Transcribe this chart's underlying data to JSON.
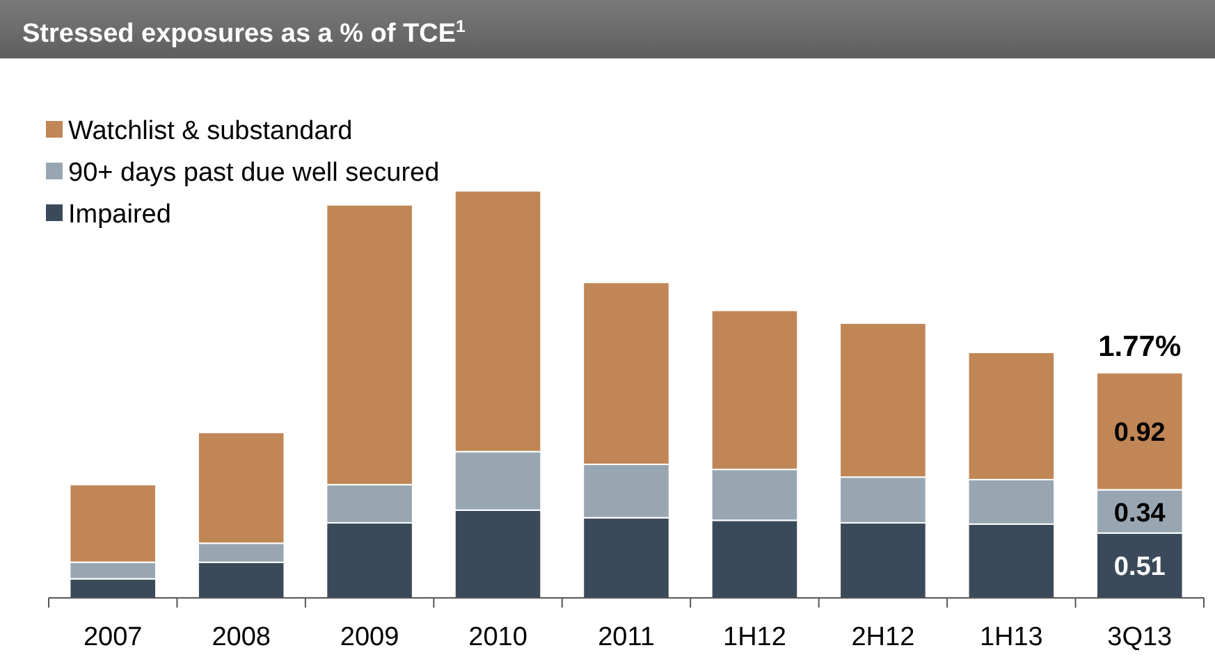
{
  "chart_data": {
    "type": "bar",
    "stacked": true,
    "title": "Stressed exposures as a % of TCE$^{1}$",
    "categories": [
      "2007",
      "2008",
      "2009",
      "2010",
      "2011",
      "1H12",
      "2H12",
      "1H13",
      "3Q13"
    ],
    "series": [
      {
        "name": "Impaired",
        "color": "#3b4a5a",
        "values": [
          0.15,
          0.28,
          0.59,
          0.69,
          0.63,
          0.61,
          0.59,
          0.58,
          0.51
        ],
        "value_labels": [
          null,
          null,
          null,
          null,
          null,
          null,
          null,
          null,
          "0.51"
        ]
      },
      {
        "name": "90+ days past due well secured",
        "color": "#98a6b2",
        "values": [
          0.13,
          0.15,
          0.3,
          0.46,
          0.42,
          0.4,
          0.36,
          0.35,
          0.34
        ],
        "value_labels": [
          null,
          null,
          null,
          null,
          null,
          null,
          null,
          null,
          "0.34"
        ]
      },
      {
        "name": "Watchlist & substandard",
        "color": "#c08656",
        "values": [
          0.61,
          0.87,
          2.2,
          2.05,
          1.43,
          1.25,
          1.21,
          1.0,
          0.92
        ],
        "value_labels": [
          null,
          null,
          null,
          null,
          null,
          null,
          null,
          null,
          "0.92"
        ]
      }
    ],
    "totals": [
      null,
      null,
      null,
      null,
      null,
      null,
      null,
      null,
      "1.77%"
    ],
    "ylim": [
      0,
      3.4
    ],
    "legend": "top left",
    "grid": false
  }
}
